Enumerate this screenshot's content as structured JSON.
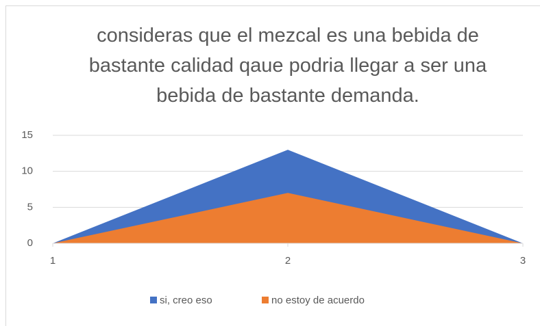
{
  "chart_data": {
    "type": "area",
    "title": "consideras que el mezcal es una bebida de bastante calidad qaue podria llegar a ser una bebida de bastante demanda.",
    "x": [
      1,
      2,
      3
    ],
    "xlim": [
      1,
      3
    ],
    "xticks": [
      1,
      2,
      3
    ],
    "ylim": [
      0,
      15
    ],
    "yticks": [
      0,
      5,
      10,
      15
    ],
    "grid": true,
    "legend": "bottom",
    "series": [
      {
        "name": "si, creo eso",
        "color": "#4472c4",
        "values": [
          0,
          13,
          0
        ]
      },
      {
        "name": "no estoy de acuerdo",
        "color": "#ed7d31",
        "values": [
          0,
          7,
          0
        ]
      }
    ]
  }
}
